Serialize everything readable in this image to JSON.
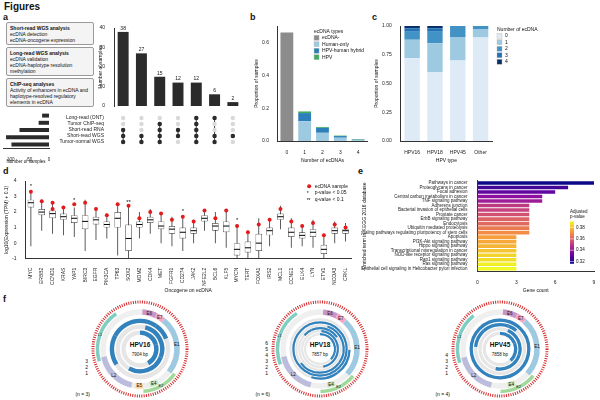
{
  "title": "Figures",
  "workflow_boxes": [
    {
      "title": "Short-read WGS analysis",
      "lines": [
        "ecDNA detection",
        "ecDNA-oncogene expression"
      ]
    },
    {
      "title": "Long-read WGS analysis",
      "lines": [
        "ecDNA validation",
        "ecDNA-haplotype resolution",
        "methylation"
      ]
    },
    {
      "title": "ChIP-seq analyses",
      "lines": [
        "Activity of enhancers in ecDNA and haplotype-resolved regulatory elements in ecDNA"
      ]
    }
  ],
  "chart_data": [
    {
      "panel": "a",
      "type": "upset",
      "y_label": "Number of samples",
      "values": [
        38,
        27,
        15,
        12,
        12,
        6,
        2
      ],
      "data_labels": true,
      "color": "#2b2b2b",
      "ylim": [
        0,
        40
      ],
      "yticks": [
        0,
        10,
        20,
        30,
        40
      ],
      "sets": [
        "Long-read (ONT)",
        "Tumor ChIP-seq",
        "Short-read RNA",
        "Short-read WGS",
        "Tumor-normal WGS"
      ],
      "set_sizes": [
        18,
        27,
        77,
        112,
        98
      ],
      "set_label": "Number of samples",
      "set_xlim": [
        0,
        120
      ],
      "set_xticks": [
        0,
        50,
        100
      ],
      "members": [
        [
          2,
          3,
          4
        ],
        [
          3,
          4
        ],
        [
          1,
          2,
          3,
          4
        ],
        [
          2,
          3
        ],
        [
          0,
          1,
          2,
          3,
          4
        ],
        [
          0,
          3,
          4
        ],
        [
          3
        ]
      ]
    },
    {
      "panel": "b",
      "type": "bar",
      "stacked": true,
      "x_label": "Number of ecDNAs",
      "y_label": "Proportion of samples",
      "categories": [
        "0",
        "1",
        "2",
        "3",
        "4"
      ],
      "series": [
        {
          "name": "ecDNA-",
          "color": "#8c8c8c",
          "values": [
            0.66,
            0,
            0,
            0,
            0
          ]
        },
        {
          "name": "Human-only",
          "color": "#9ecae1",
          "values": [
            0,
            0.12,
            0.05,
            0.02,
            0.004
          ]
        },
        {
          "name": "HPV-human hybrid",
          "color": "#2c7fb8",
          "values": [
            0,
            0.05,
            0.03,
            0.01,
            0.004
          ]
        },
        {
          "name": "HPV",
          "color": "#41ab5d",
          "values": [
            0,
            0.01,
            0.005,
            0.003,
            0.003
          ]
        }
      ],
      "legend_title": "ecDNA types",
      "legend": "upper right",
      "ylim": [
        0,
        0.7
      ],
      "yticks": [
        {
          "value": 0,
          "label": "0.0"
        },
        0.2,
        0.4,
        0.6
      ]
    },
    {
      "panel": "c",
      "type": "bar",
      "stacked": true,
      "x_label": "HPV type",
      "y_label": "Proportion of samples",
      "categories": [
        "HPV16",
        "HPV18",
        "HPV45",
        "Other"
      ],
      "series": [
        {
          "name": "0",
          "color": "#deebf7",
          "values": [
            0.72,
            0.6,
            0.7,
            0.9
          ]
        },
        {
          "name": "1",
          "color": "#9ecae1",
          "values": [
            0.16,
            0.25,
            0.2,
            0.07
          ]
        },
        {
          "name": "2",
          "color": "#4292c6",
          "values": [
            0.07,
            0.1,
            0.1,
            0.03
          ]
        },
        {
          "name": "3",
          "color": "#2171b5",
          "values": [
            0.03,
            0.03,
            0,
            0
          ]
        },
        {
          "name": "4",
          "color": "#08306b",
          "values": [
            0.02,
            0.02,
            0,
            0
          ]
        }
      ],
      "legend_title": "Number of ecDNA",
      "legend": "right",
      "ylim": [
        0,
        1
      ],
      "yticks": [
        {
          "value": 0,
          "label": "0.00"
        },
        0.25,
        {
          "value": 0.5,
          "label": "0.50"
        },
        0.75,
        {
          "value": 1,
          "label": "1.00"
        }
      ]
    },
    {
      "panel": "d",
      "type": "box",
      "x_label": "Oncogene on ecDNA",
      "y_label": "log10(Expression (TPM) + 0.1)",
      "categories": [
        "MYC",
        "ERBB2",
        "CCND1",
        "KRAS",
        "YAP1",
        "BIRC3",
        "EGFR",
        "PIK3CA",
        "TP63",
        "SOX2",
        "MDM2",
        "CDK4",
        "MET",
        "FGFR1",
        "CD274",
        "JAK2",
        "NFE2L2",
        "BCL6",
        "KLF5",
        "MYCN",
        "TERT",
        "FOXA1",
        "IRS2",
        "MCL1",
        "CCNE1",
        "ELK4",
        "LYN",
        "ETV1",
        "NCOA3",
        "CRKL"
      ],
      "min": [
        -0.2,
        0.8,
        0.6,
        0.5,
        0.4,
        -0.5,
        0.2,
        0.3,
        -0.8,
        -1.0,
        0.3,
        0.6,
        0.0,
        -0.2,
        -0.5,
        0.0,
        0.8,
        0.0,
        -0.3,
        -1.0,
        -1.0,
        -1.0,
        -0.2,
        0.9,
        -0.3,
        -0.2,
        -0.3,
        -1.0,
        0.0,
        0.1
      ],
      "q1": [
        2.3,
        1.8,
        1.6,
        1.5,
        1.3,
        0.9,
        1.2,
        1.0,
        1.0,
        -0.5,
        1.0,
        1.3,
        0.9,
        0.6,
        0.3,
        0.6,
        1.4,
        0.8,
        0.7,
        -0.8,
        -0.6,
        -0.5,
        0.5,
        1.5,
        0.4,
        0.3,
        0.4,
        -0.7,
        0.6,
        0.6
      ],
      "median": [
        2.6,
        2.0,
        1.9,
        1.7,
        1.6,
        1.4,
        1.5,
        1.2,
        1.6,
        0.3,
        1.2,
        1.5,
        1.1,
        0.9,
        0.7,
        0.8,
        1.6,
        1.1,
        1.1,
        -0.4,
        -0.3,
        0.0,
        0.8,
        1.7,
        0.7,
        0.5,
        0.7,
        -0.4,
        0.8,
        0.8
      ],
      "q3": [
        2.8,
        2.2,
        2.1,
        1.9,
        1.8,
        1.8,
        1.7,
        1.4,
        2.0,
        1.2,
        1.4,
        1.7,
        1.4,
        1.1,
        1.0,
        1.0,
        1.8,
        1.3,
        1.4,
        0.0,
        0.1,
        0.6,
        1.0,
        1.9,
        1.0,
        0.7,
        0.9,
        -0.1,
        1.0,
        0.9
      ],
      "max": [
        3.4,
        2.8,
        2.7,
        2.4,
        2.3,
        2.8,
        2.3,
        1.9,
        2.6,
        2.4,
        2.0,
        2.2,
        2.0,
        1.7,
        1.8,
        1.5,
        2.2,
        2.0,
        2.2,
        1.2,
        0.8,
        1.6,
        1.6,
        2.4,
        1.6,
        1.2,
        1.5,
        0.6,
        1.4,
        1.3
      ],
      "ecdna_values": [
        [
          3.3
        ],
        [
          2.7
        ],
        [
          2.6,
          2.2
        ],
        [
          2.3
        ],
        [
          2.5
        ],
        [
          2.6
        ],
        [
          2.2
        ],
        [
          1.8
        ],
        [
          2.5
        ],
        [
          2.4
        ],
        [
          1.6
        ],
        [
          2.0
        ],
        [
          1.9
        ],
        [
          1.5
        ],
        [
          1.7
        ],
        [
          1.4
        ],
        [
          2.1
        ],
        [
          1.6
        ],
        [
          2.1
        ],
        [
          1.1
        ],
        [
          0.7
        ],
        [
          1.2
        ],
        [
          1.5
        ],
        [
          2.2
        ],
        [
          1.4
        ],
        [
          1.1
        ],
        [
          1.3
        ],
        [
          0.5
        ],
        [
          1.2
        ],
        [
          1.0
        ]
      ],
      "significance": [
        "*",
        null,
        null,
        null,
        "*",
        null,
        null,
        null,
        null,
        "**",
        null,
        null,
        null,
        null,
        "*",
        null,
        null,
        null,
        null,
        "*",
        null,
        null,
        null,
        null,
        null,
        null,
        null,
        null,
        null,
        null
      ],
      "color": "#e41a1c",
      "legend": "upper right",
      "legend_items": [
        {
          "label": "ecDNA sample",
          "marker": "circle"
        },
        {
          "label": "p-value < 0.05",
          "symbol": "*"
        },
        {
          "label": "q-value < 0.1",
          "symbol": "**"
        }
      ],
      "ylim": [
        -1,
        4
      ],
      "yticks": [
        -1,
        0,
        1,
        2,
        3,
        4
      ]
    },
    {
      "panel": "e",
      "type": "bar",
      "orientation": "horizontal",
      "x_label": "Gene count",
      "y_label": "Enriched term in KEGG 2016 database",
      "categories": [
        "Pathways in cancer",
        "Proteoglycans in cancer",
        "Focal adhesion",
        "Central carbon metabolism in cancer",
        "TNF signaling pathway",
        "Adherens junction",
        "Bacterial invasion of epithelial cells",
        "Prostate cancer",
        "ErbB signaling pathway",
        "Endocytosis",
        "Ubiquitin mediated proteolysis",
        "Signaling pathways regulating pluripotency of stem cells",
        "Apoptosis",
        "PI3K-Akt signaling pathway",
        "Hippo signaling pathway",
        "Transcriptional misregulation in cancer",
        "NOD-like receptor signaling pathway",
        "Rap1 signaling pathway",
        "Ras signaling pathway",
        "Epithelial cell signaling in Helicobacter pylori infection"
      ],
      "values": [
        9,
        7,
        6,
        5,
        5,
        4,
        4,
        4,
        4,
        4,
        4,
        4,
        3,
        3,
        3,
        3,
        3,
        3,
        3,
        3
      ],
      "adjusted_p_values": [
        0.316,
        0.325,
        0.33,
        0.338,
        0.342,
        0.35,
        0.352,
        0.356,
        0.36,
        0.362,
        0.366,
        0.37,
        0.374,
        0.376,
        0.378,
        0.381,
        0.384,
        0.386,
        0.389,
        0.391
      ],
      "colorbar": {
        "title": "Adjusted p-value",
        "range": [
          0.316,
          0.391
        ],
        "ticks": [
          0.32,
          0.34,
          0.36,
          0.38
        ]
      },
      "xlim": [
        0,
        9
      ],
      "xticks": [
        0,
        3,
        6,
        9
      ]
    }
  ],
  "genome_maps": {
    "panel": "f",
    "maps": [
      {
        "name": "HPV16",
        "length": 7904,
        "length_label": "7904 bp",
        "n_label": "(n = 3)",
        "color": "#3182bd",
        "genes": [
          {
            "name": "E6",
            "start": 83,
            "end": 559,
            "color": "#c994c7"
          },
          {
            "name": "E7",
            "start": 562,
            "end": 858,
            "color": "#f4a6c6"
          },
          {
            "name": "E1",
            "start": 865,
            "end": 2813,
            "color": "#9ecae1"
          },
          {
            "name": "E2",
            "start": 2755,
            "end": 3852,
            "color": "#a1d99b"
          },
          {
            "name": "E4",
            "start": 3332,
            "end": 3619,
            "color": "#c7e9c0"
          },
          {
            "name": "E5",
            "start": 3849,
            "end": 4100,
            "color": "#fdd49e"
          },
          {
            "name": "L2",
            "start": 4236,
            "end": 5657,
            "color": "#bcbddc"
          },
          {
            "name": "L1",
            "start": 5560,
            "end": 7155,
            "color": "#80cdc1"
          }
        ],
        "samples": [
          {
            "label": "1",
            "segments": [
              [
                0,
                3300
              ]
            ]
          },
          {
            "label": "2",
            "segments": [
              [
                300,
                4600
              ]
            ]
          },
          {
            "label": "3",
            "segments": [
              [
                5200,
                7904
              ],
              [
                0,
                1500
              ]
            ]
          }
        ]
      },
      {
        "name": "HPV18",
        "length": 7857,
        "length_label": "7857 bp",
        "n_label": "(n = 6)",
        "color": "#3182bd",
        "genes": [
          {
            "name": "E6",
            "start": 105,
            "end": 581,
            "color": "#c994c7"
          },
          {
            "name": "E7",
            "start": 590,
            "end": 907,
            "color": "#f4a6c6"
          },
          {
            "name": "E1",
            "start": 914,
            "end": 2887,
            "color": "#9ecae1"
          },
          {
            "name": "E2",
            "start": 2817,
            "end": 3914,
            "color": "#a1d99b"
          },
          {
            "name": "E4",
            "start": 3418,
            "end": 3684,
            "color": "#c7e9c0"
          },
          {
            "name": "L2",
            "start": 4244,
            "end": 5632,
            "color": "#bcbddc"
          },
          {
            "name": "L1",
            "start": 5430,
            "end": 7136,
            "color": "#80cdc1"
          }
        ],
        "samples": [
          {
            "label": "1",
            "segments": [
              [
                0,
                2900
              ]
            ]
          },
          {
            "label": "2",
            "segments": [
              [
                100,
                3700
              ]
            ]
          },
          {
            "label": "3",
            "segments": [
              [
                6800,
                7857
              ],
              [
                0,
                1200
              ]
            ]
          },
          {
            "label": "4",
            "segments": [
              [
                400,
                5100
              ]
            ]
          },
          {
            "label": "5",
            "segments": [
              [
                0,
                7857
              ]
            ]
          },
          {
            "label": "6",
            "segments": [
              [
                2000,
                4300
              ]
            ]
          }
        ]
      },
      {
        "name": "HPV45",
        "length": 7858,
        "length_label": "7858 bp",
        "n_label": "(n = 4)",
        "color": "#3182bd",
        "genes": [
          {
            "name": "E6",
            "start": 99,
            "end": 575,
            "color": "#c994c7"
          },
          {
            "name": "E7",
            "start": 584,
            "end": 901,
            "color": "#f4a6c6"
          },
          {
            "name": "E1",
            "start": 908,
            "end": 2878,
            "color": "#9ecae1"
          },
          {
            "name": "E2",
            "start": 2808,
            "end": 3914,
            "color": "#a1d99b"
          },
          {
            "name": "E4",
            "start": 3412,
            "end": 3669,
            "color": "#c7e9c0"
          },
          {
            "name": "L2",
            "start": 4225,
            "end": 5604,
            "color": "#bcbddc"
          },
          {
            "name": "L1",
            "start": 5483,
            "end": 7022,
            "color": "#80cdc1"
          }
        ],
        "samples": [
          {
            "label": "1",
            "segments": [
              [
                0,
                3000
              ]
            ]
          },
          {
            "label": "2",
            "segments": [
              [
                500,
                4200
              ]
            ]
          },
          {
            "label": "3",
            "segments": [
              [
                6000,
                7858
              ],
              [
                0,
                900
              ]
            ]
          },
          {
            "label": "4",
            "segments": [
              [
                0,
                7858
              ]
            ]
          }
        ]
      }
    ]
  }
}
